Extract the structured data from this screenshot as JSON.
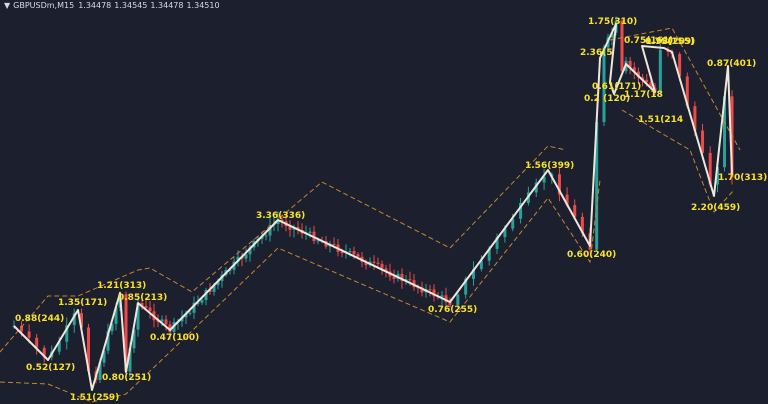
{
  "header": {
    "triangle": "▼",
    "symbol": "GBPUSDm,M15",
    "ohlc": [
      "1.34478",
      "1.34545",
      "1.34478",
      "1.34510"
    ]
  },
  "colors": {
    "background": "#1b1f2e",
    "bull": "#2aa198",
    "bear": "#ef4a4a",
    "zigzag": "#ede8dc",
    "channel": "#c8862a",
    "label": "#f7e12f"
  },
  "chart_data": {
    "type": "candlestick",
    "symbol": "GBPUSDm",
    "timeframe": "M15",
    "zigzag": [
      {
        "label": "0.88(244)"
      },
      {
        "label": "0.52(127)"
      },
      {
        "label": "1.35(171)"
      },
      {
        "label": "1.51(259)"
      },
      {
        "label": "1.21(313)"
      },
      {
        "label": "0.80(251)"
      },
      {
        "label": "0.85(213)"
      },
      {
        "label": "0.47(100)"
      },
      {
        "label": "3.36(336)"
      },
      {
        "label": "0.76(255)"
      },
      {
        "label": "1.56(399)"
      },
      {
        "label": "0.60(240)"
      },
      {
        "label": "2.36(5"
      },
      {
        "label": "0.61(171)"
      },
      {
        "label": "0.2 (120)"
      },
      {
        "label": "1.75(310)"
      },
      {
        "label": "0.75(161)"
      },
      {
        "label": "0.75(155)"
      },
      {
        "label": "1.17(18"
      },
      {
        "label": "1.51(214"
      },
      {
        "label": "1.98(209)"
      },
      {
        "label": "2.20(459)"
      },
      {
        "label": "0.87(401)"
      },
      {
        "label": "1.70(313)"
      }
    ]
  }
}
